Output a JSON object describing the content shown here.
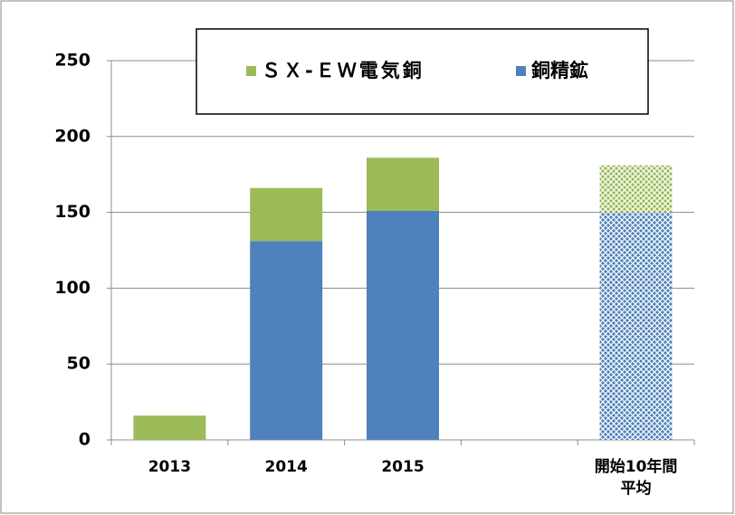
{
  "chart_data": {
    "type": "stacked_bar",
    "categories": [
      "2013",
      "2014",
      "2015",
      null,
      "開始10年間\n平均"
    ],
    "series": [
      {
        "name": "銅精鉱",
        "color": "#4f81bd",
        "values": [
          null,
          131,
          151,
          null,
          150
        ]
      },
      {
        "name": "ＳＸ-ＥＷ電気銅",
        "color": "#9bbb59",
        "values": [
          16,
          35,
          35,
          null,
          31
        ]
      }
    ],
    "hatch": [
      false,
      false,
      false,
      false,
      true
    ],
    "ylim": [
      0,
      250
    ],
    "yticks": [
      0,
      50,
      100,
      150,
      200,
      250
    ],
    "grid": true,
    "legend": "top"
  }
}
